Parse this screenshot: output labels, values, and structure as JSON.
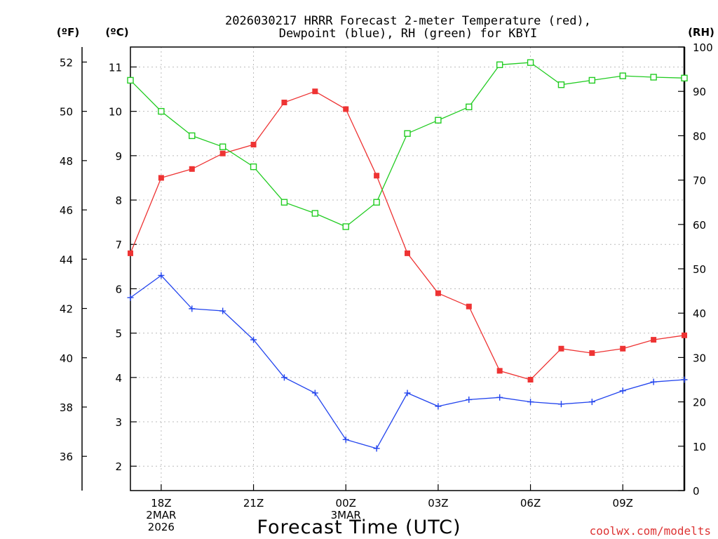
{
  "chart_data": {
    "type": "line",
    "title_lines": [
      "2026030217 HRRR Forecast 2-meter Temperature (red),",
      "Dewpoint (blue), RH (green) for KBYI"
    ],
    "units": {
      "fahrenheit": "(ºF)",
      "celsius": "(ºC)",
      "rh": "(RH)"
    },
    "xlabel": "Forecast Time (UTC)",
    "credit": "coolwx.com/modelts",
    "x_hours": [
      17,
      18,
      19,
      20,
      21,
      22,
      23,
      24,
      25,
      26,
      27,
      28,
      29,
      30,
      31,
      32,
      33,
      34,
      35
    ],
    "xlim": [
      17,
      35
    ],
    "x_ticks": [
      {
        "hour": 18,
        "lines": [
          "18Z",
          "2MAR",
          "2026"
        ]
      },
      {
        "hour": 21,
        "lines": [
          "21Z"
        ]
      },
      {
        "hour": 24,
        "lines": [
          "00Z",
          "3MAR"
        ]
      },
      {
        "hour": 27,
        "lines": [
          "03Z"
        ]
      },
      {
        "hour": 30,
        "lines": [
          "06Z"
        ]
      },
      {
        "hour": 33,
        "lines": [
          "09Z"
        ]
      }
    ],
    "celsius_axis": {
      "ylim": [
        1.45,
        11.45
      ],
      "ticks": [
        "2",
        "3",
        "4",
        "5",
        "6",
        "7",
        "8",
        "9",
        "10",
        "11"
      ]
    },
    "fahrenheit_axis": {
      "ticks": [
        "36",
        "38",
        "40",
        "42",
        "44",
        "46",
        "48",
        "50",
        "52"
      ]
    },
    "rh_axis": {
      "ylim": [
        0,
        100
      ],
      "ticks": [
        "0",
        "10",
        "20",
        "30",
        "40",
        "50",
        "60",
        "70",
        "80",
        "90",
        "100"
      ]
    },
    "series": [
      {
        "name": "2-meter Temperature",
        "axis": "celsius",
        "color": "#ee3333",
        "marker": "filled-square",
        "values": [
          6.8,
          8.5,
          8.7,
          9.05,
          9.25,
          10.2,
          10.45,
          10.05,
          8.55,
          6.8,
          5.9,
          5.6,
          4.15,
          3.95,
          4.65,
          4.55,
          4.65,
          4.85,
          4.95
        ]
      },
      {
        "name": "Dewpoint",
        "axis": "celsius",
        "color": "#2244ee",
        "marker": "plus",
        "values": [
          5.8,
          6.3,
          5.55,
          5.5,
          4.85,
          4.0,
          3.65,
          2.6,
          2.4,
          3.65,
          3.35,
          3.5,
          3.55,
          3.45,
          3.4,
          3.45,
          3.7,
          3.9,
          3.95
        ]
      },
      {
        "name": "Relative Humidity",
        "axis": "rh",
        "color": "#22cc22",
        "marker": "open-square",
        "values": [
          92.5,
          85.5,
          80,
          77.5,
          73,
          65,
          62.5,
          59.5,
          65,
          80.5,
          83.5,
          86.5,
          96,
          96.5,
          91.5,
          92.5,
          93.5,
          93.2,
          93
        ]
      }
    ]
  }
}
